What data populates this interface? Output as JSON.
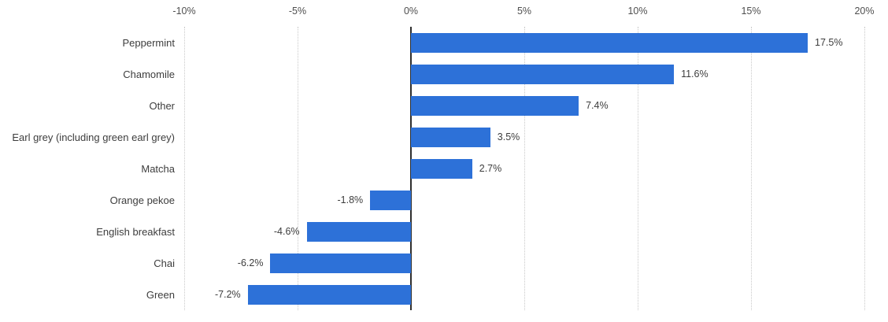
{
  "chart_data": {
    "type": "bar",
    "orientation": "horizontal",
    "title": "",
    "xlabel": "",
    "ylabel": "",
    "categories": [
      "Peppermint",
      "Chamomile",
      "Other",
      "Earl grey (including green earl grey)",
      "Matcha",
      "Orange pekoe",
      "English breakfast",
      "Chai",
      "Green"
    ],
    "values": [
      17.5,
      11.6,
      7.4,
      3.5,
      2.7,
      -1.8,
      -4.6,
      -6.2,
      -7.2
    ],
    "value_labels": [
      "17.5%",
      "11.6%",
      "7.4%",
      "3.5%",
      "2.7%",
      "-1.8%",
      "-4.6%",
      "-6.2%",
      "-7.2%"
    ],
    "x_ticks": [
      {
        "label": "-10%",
        "value": -10
      },
      {
        "label": "-5%",
        "value": -5
      },
      {
        "label": "0%",
        "value": 0
      },
      {
        "label": "5%",
        "value": 5
      },
      {
        "label": "10%",
        "value": 10
      },
      {
        "label": "15%",
        "value": 15
      },
      {
        "label": "20%",
        "value": 20
      }
    ],
    "xlim": [
      -10,
      20
    ],
    "grid": true,
    "grid_axis": "x",
    "legend": "none",
    "bar_color": "#2d71d8",
    "zero_line_color": "#2f2f2f",
    "gridline_color": "#c9c9c9",
    "tick_label_color": "#4f4f4f",
    "text_color": "#3d3d3d"
  }
}
